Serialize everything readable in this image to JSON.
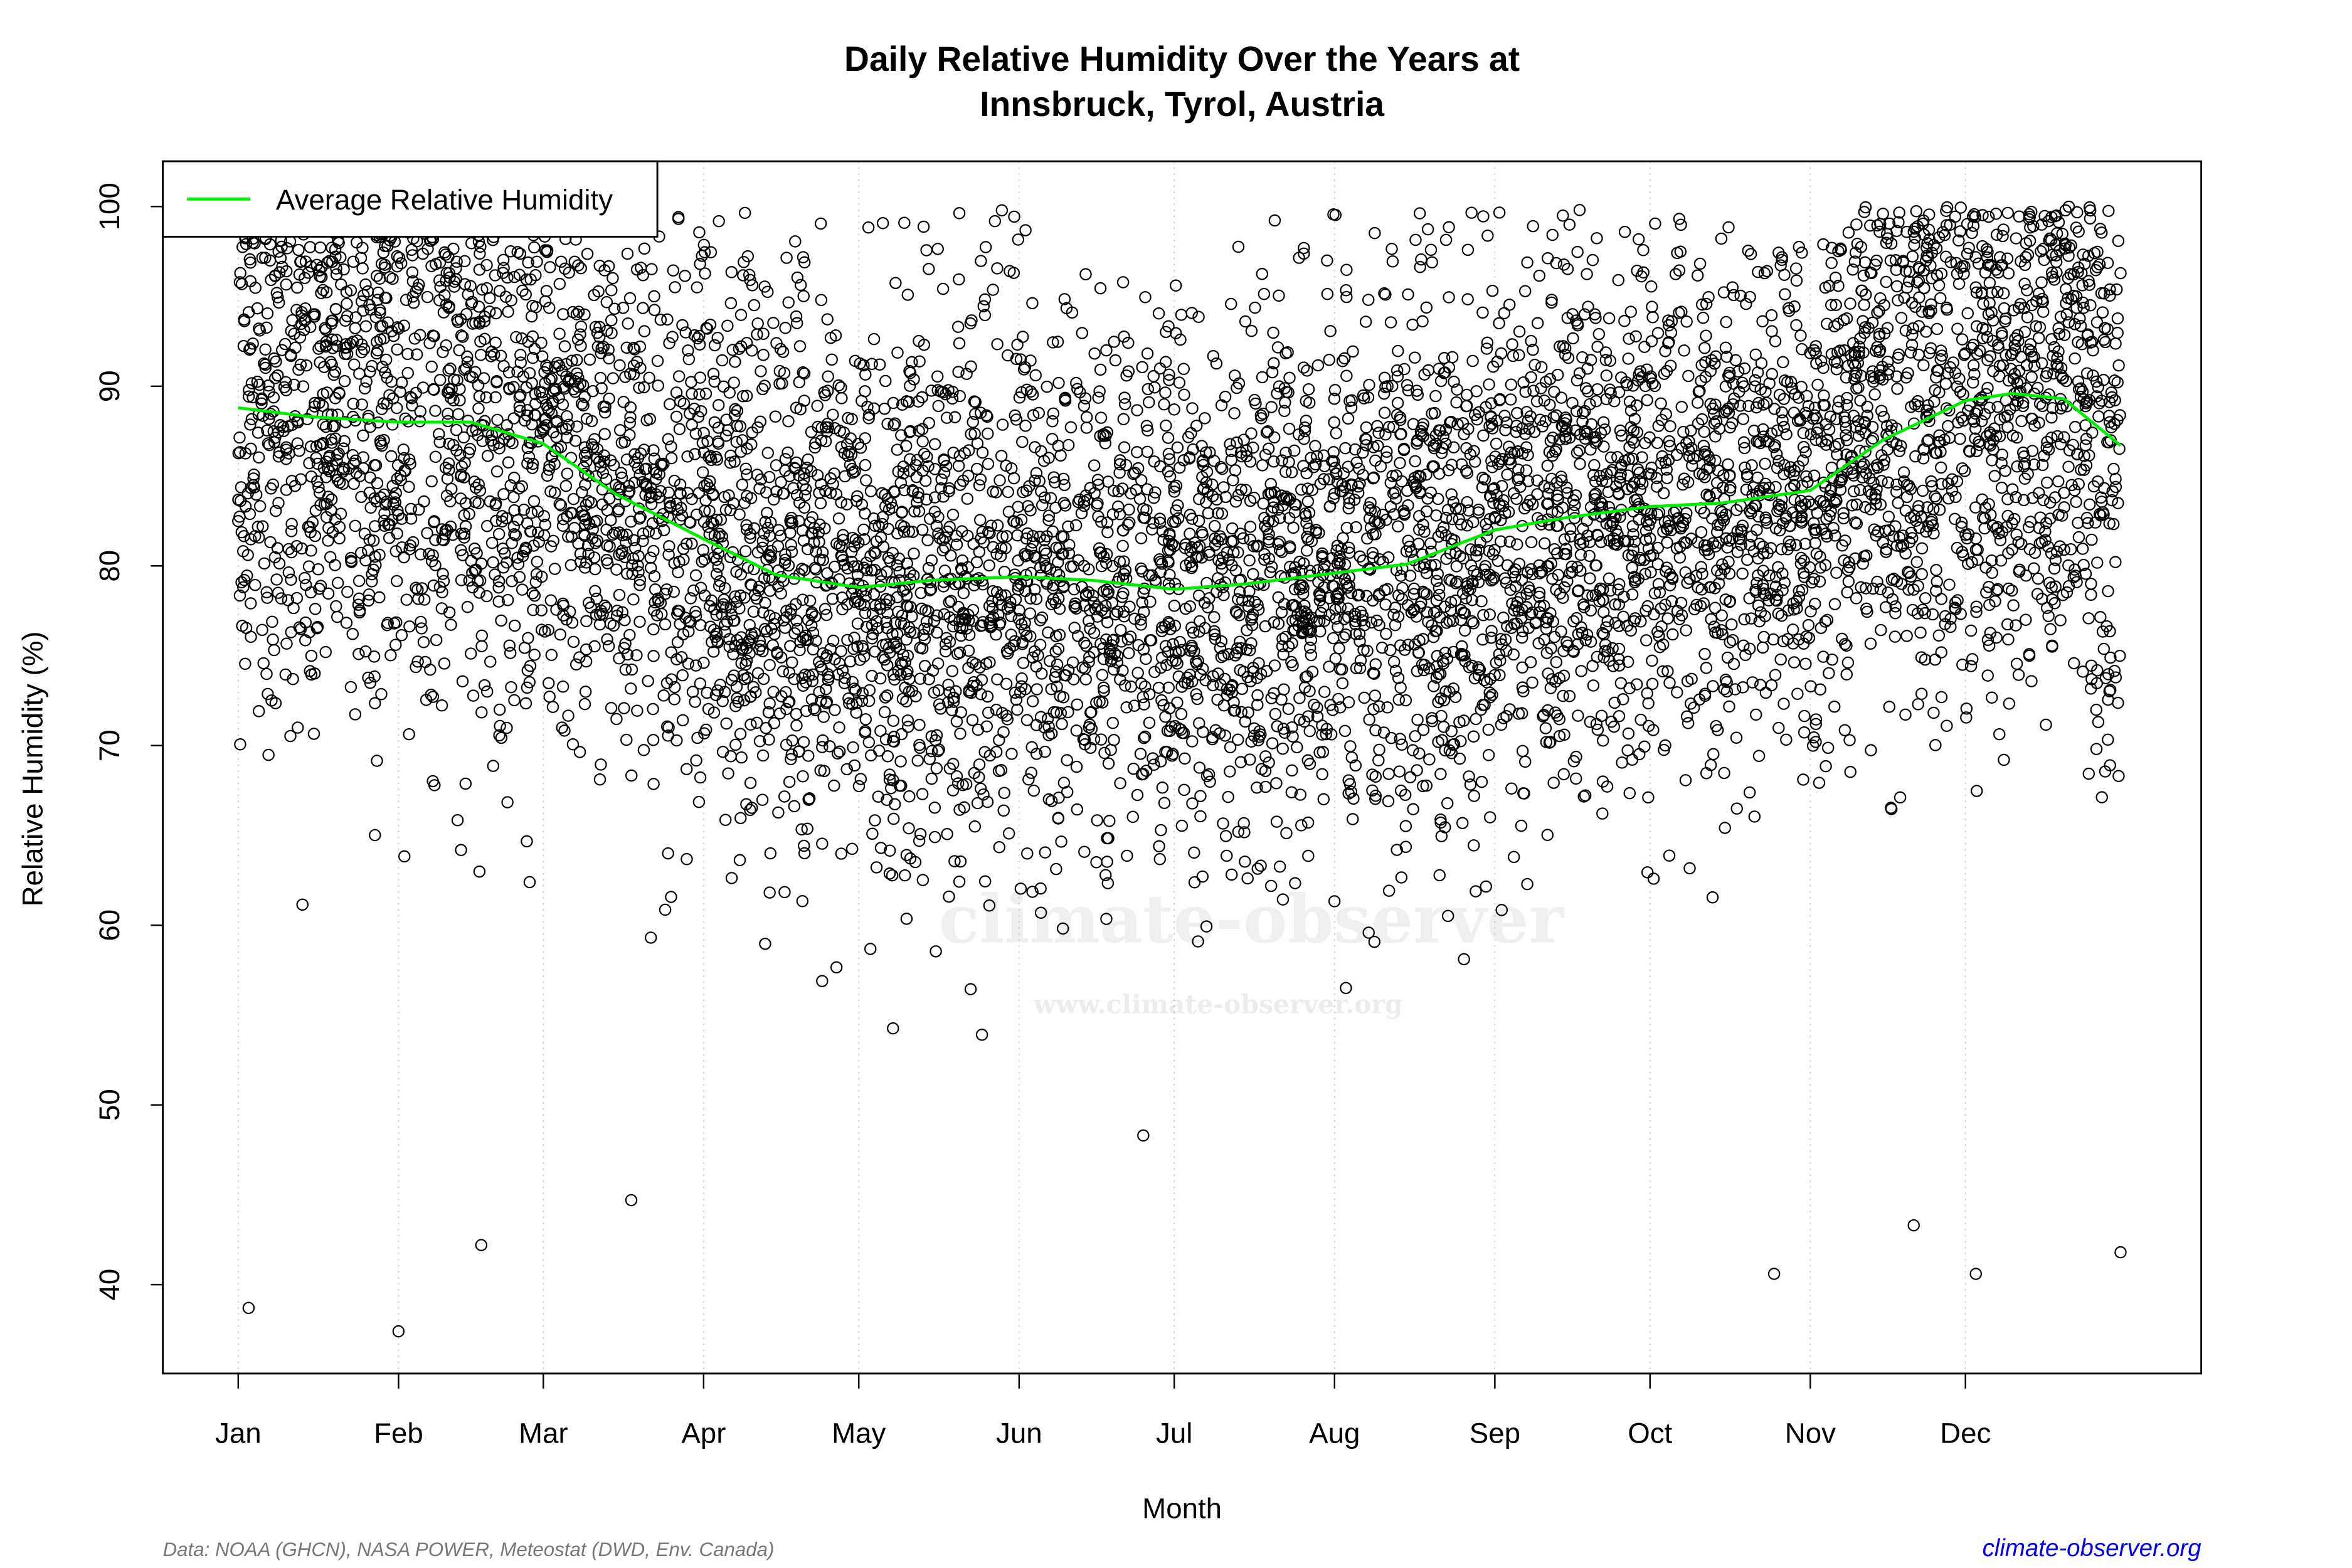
{
  "chart_data": {
    "type": "scatter",
    "title": "Daily Relative Humidity Over the Years at",
    "subtitle": "Innsbruck, Tyrol, Austria",
    "xlabel": "Month",
    "ylabel": "Relative Humidity  (%)",
    "ylim": [
      35,
      102
    ],
    "yticks": [
      40,
      50,
      60,
      70,
      80,
      90,
      100
    ],
    "xticks": [
      "Jan",
      "Feb",
      "Mar",
      "Apr",
      "May",
      "Jun",
      "Jul",
      "Aug",
      "Sep",
      "Oct",
      "Nov",
      "Dec"
    ],
    "month_start_day": [
      1,
      32,
      60,
      91,
      121,
      152,
      182,
      213,
      244,
      274,
      305,
      335
    ],
    "legend": {
      "label": "Average Relative Humidity",
      "position": "top-left"
    },
    "colors": {
      "points": "#000000",
      "average": "#00ee00"
    },
    "average_series": {
      "name": "Average Relative Humidity",
      "day": [
        1,
        15,
        32,
        46,
        60,
        74,
        91,
        105,
        121,
        135,
        152,
        166,
        182,
        196,
        213,
        227,
        244,
        258,
        274,
        288,
        305,
        319,
        335,
        344,
        354,
        365
      ],
      "value": [
        88.8,
        88.3,
        88.0,
        88.0,
        86.8,
        84.0,
        81.5,
        79.5,
        78.8,
        79.2,
        79.4,
        79.2,
        78.7,
        79.0,
        79.6,
        80.1,
        82.0,
        82.7,
        83.3,
        83.5,
        84.2,
        87.0,
        89.2,
        89.6,
        89.3,
        86.7
      ]
    },
    "daily_points_note_outliers": [
      {
        "day": 3,
        "value": 38.7
      },
      {
        "day": 32,
        "value": 37.4
      },
      {
        "day": 48,
        "value": 42.2
      },
      {
        "day": 77,
        "value": 44.7
      },
      {
        "day": 176,
        "value": 48.3
      },
      {
        "day": 298,
        "value": 40.6
      },
      {
        "day": 325,
        "value": 43.3
      },
      {
        "day": 337,
        "value": 40.6
      },
      {
        "day": 365,
        "value": 41.8
      }
    ]
  },
  "watermark": {
    "name": "climate-observer",
    "url": "www.climate-observer.org"
  },
  "footer": {
    "source": "Data: NOAA (GHCN), NASA POWER, Meteostat (DWD, Env. Canada)",
    "site": "climate-observer.org"
  }
}
